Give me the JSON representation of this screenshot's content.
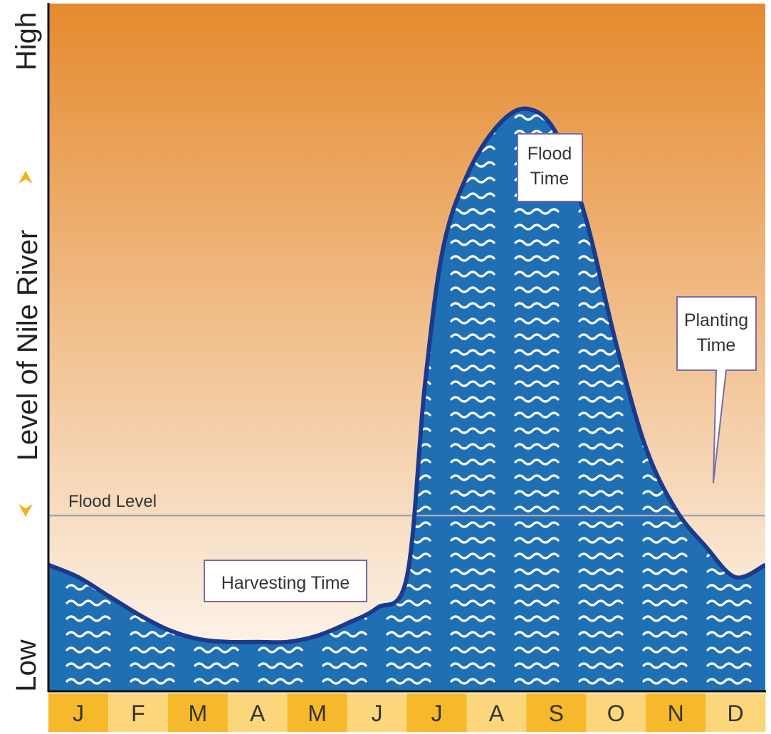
{
  "chart_data": {
    "type": "area",
    "title": "",
    "xlabel": "",
    "ylabel": "Level of Nile River",
    "y_high_label": "High",
    "y_low_label": "Low",
    "y_scale": "relative (0 = Low, 100 = High)",
    "ylim": [
      0,
      100
    ],
    "categories": [
      "J",
      "F",
      "M",
      "A",
      "M",
      "J",
      "J",
      "A",
      "S",
      "O",
      "N",
      "D"
    ],
    "x": [
      0,
      0.5,
      1,
      1.5,
      2,
      2.5,
      3,
      3.5,
      4,
      4.5,
      5,
      5.5,
      6,
      6.3,
      6.6,
      7,
      7.5,
      8,
      8.5,
      9,
      9.5,
      10,
      10.5,
      11,
      11.5,
      12
    ],
    "values": [
      19,
      17,
      14,
      11,
      8.5,
      7,
      6.5,
      6.5,
      6.5,
      7.5,
      9.5,
      12,
      17,
      48,
      70,
      82,
      90,
      93,
      89,
      75,
      55,
      38,
      28,
      22,
      17,
      19
    ],
    "flood_level": {
      "label": "Flood Level",
      "value": 27
    },
    "annotations": [
      {
        "label": "Harvesting Time",
        "month": "M-J"
      },
      {
        "label": "Flood\nTime",
        "month": "S"
      },
      {
        "label": "Planting\nTime",
        "month": "N"
      }
    ],
    "colors": {
      "background_top": "#e58a2e",
      "background_bottom": "#fefaf5",
      "water_fill": "#1f6fb5",
      "water_outline": "#1b3a8c",
      "wave": "#ffffff",
      "flood_line": "#a7a3b5",
      "month_bar_dark": "#f6b92b",
      "month_bar_light": "#fbd67a",
      "arrow": "#f3b21b"
    }
  }
}
